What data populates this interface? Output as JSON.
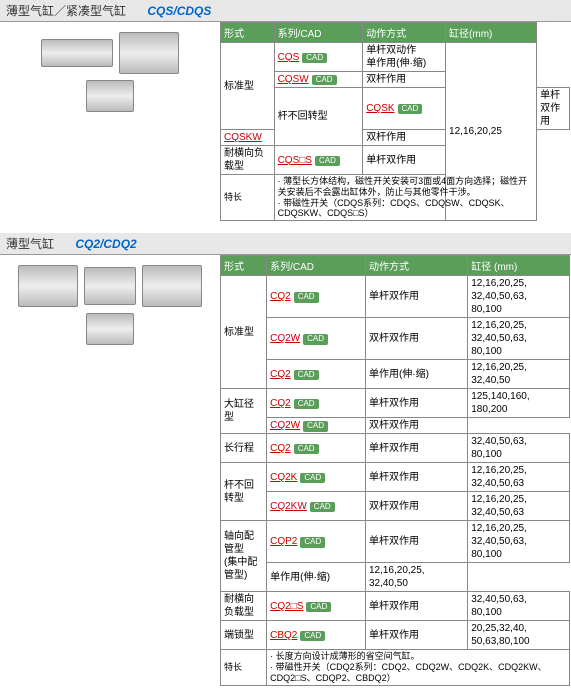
{
  "sec1": {
    "title_cn": "薄型气缸／紧凑型气缸",
    "title_model": "CQS/CDQS",
    "headers": [
      "形式",
      "系列/CAD",
      "动作方式",
      "缸径(mm)"
    ],
    "rows": [
      {
        "type": "标准型",
        "series": "CQS",
        "cad": true,
        "action": "单杆双动作\n单作用(伸·缩)",
        "bore": "12,16,20,25",
        "type_rs": 3,
        "bore_rs": 6
      },
      {
        "series": "CQSW",
        "cad": true,
        "action": "双杆作用"
      },
      {
        "type": "杆不回转型",
        "series": "CQSK",
        "cad": true,
        "action": "单杆双作用",
        "type_rs": 2
      },
      {
        "series": "CQSKW",
        "action": "双杆作用"
      },
      {
        "type": "耐横向负载型",
        "series": "CQS□S",
        "cad": true,
        "action": "单杆双作用"
      }
    ],
    "feature_label": "特长",
    "feature_text": "· 薄型长方体结构，磁性开关安装可3面或4面方向选择；磁性开关安装后不会露出缸体外，防止与其他零件干涉。\n· 带磁性开关（CDQS系列：CDQS、CDQSW、CDQSK、CDQSKW、CDQS□S）"
  },
  "sec2": {
    "title_cn": "薄型气缸",
    "title_model": "CQ2/CDQ2",
    "headers": [
      "形式",
      "系列/CAD",
      "动作方式",
      "缸径 (mm)"
    ],
    "rows": [
      {
        "type": "标准型",
        "series": "CQ2",
        "cad": true,
        "action": "单杆双作用",
        "bore": "12,16,20,25,\n32,40,50,63,\n80,100",
        "type_rs": 3
      },
      {
        "series": "CQ2W",
        "cad": true,
        "action": "双杆双作用",
        "bore": "12,16,20,25,\n32,40,50,63,\n80,100"
      },
      {
        "series": "CQ2",
        "cad": true,
        "action": "单作用(伸·缩)",
        "bore": "12,16,20,25,\n32,40,50"
      },
      {
        "type": "大缸径型",
        "series": "CQ2",
        "cad": true,
        "action": "单杆双作用",
        "bore": "125,140,160,\n180,200",
        "type_rs": 2
      },
      {
        "series": "CQ2W",
        "cad": true,
        "action": "双杆双作用"
      },
      {
        "type": "长行程",
        "series": "CQ2",
        "cad": true,
        "action": "单杆双作用",
        "bore": "32,40,50,63,\n80,100"
      },
      {
        "type": "杆不回转型",
        "series": "CQ2K",
        "cad": true,
        "action": "单杆双作用",
        "bore": "12,16,20,25,\n32,40,50,63",
        "type_rs": 2
      },
      {
        "series": "CQ2KW",
        "cad": true,
        "action": "双杆双作用",
        "bore": "12,16,20,25,\n32,40,50,63"
      },
      {
        "type": "轴向配管型\n(集中配管型)",
        "series": "CQP2",
        "cad": true,
        "action": "单杆双作用",
        "bore": "12,16,20,25,\n32,40,50,63,\n80,100",
        "type_rs": 2
      },
      {
        "action": "单作用(伸·缩)",
        "bore": "12,16,20,25,\n32,40,50",
        "series_rs": true
      },
      {
        "type": "耐横向负载型",
        "series": "CQ2□S",
        "cad": true,
        "action": "单杆双作用",
        "bore": "32,40,50,63,\n80,100"
      },
      {
        "type": "端锁型",
        "series": "CBQ2",
        "cad": true,
        "action": "单杆双作用",
        "bore": "20,25,32,40,\n50,63,80,100"
      }
    ],
    "feature_label": "特长",
    "feature_text": "· 长度方向设计成薄形的省空间气缸。\n· 带磁性开关（CDQ2系列：CDQ2、CDQ2W、CDQ2K、CDQ2KW、CDQ2□S、CDQP2、CBDQ2）"
  }
}
